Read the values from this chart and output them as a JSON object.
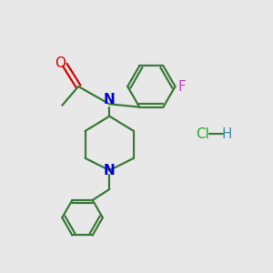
{
  "bg_color": "#e8e8e8",
  "bond_color": "#3a7a3a",
  "N_color": "#0000dd",
  "O_color": "#dd0000",
  "F_color": "#cc44cc",
  "Cl_color": "#22aa22",
  "H_color": "#4488aa",
  "line_width": 1.6,
  "font_size": 11,
  "figsize": [
    3.0,
    3.0
  ],
  "dpi": 100,
  "xlim": [
    0,
    10
  ],
  "ylim": [
    0,
    10
  ]
}
